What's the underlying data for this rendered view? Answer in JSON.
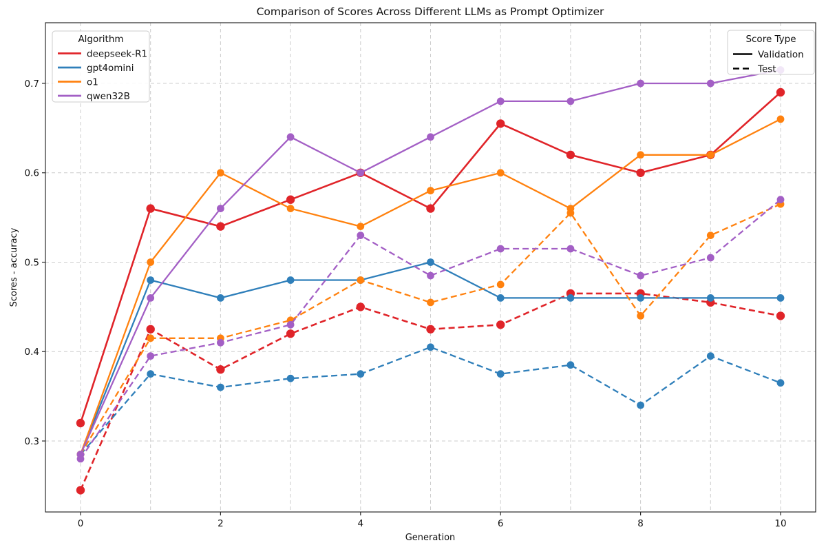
{
  "chart_data": {
    "type": "line",
    "title": "Comparison of Scores Across Different LLMs as Prompt Optimizer",
    "xlabel": "Generation",
    "ylabel": "Scores - accuracy",
    "x": [
      0,
      1,
      2,
      3,
      4,
      5,
      6,
      7,
      8,
      9,
      10
    ],
    "xticks": [
      0,
      2,
      4,
      6,
      8,
      10
    ],
    "xtick_labels": [
      "0",
      "2",
      "4",
      "6",
      "8",
      "10"
    ],
    "yticks": [
      0.3,
      0.4,
      0.5,
      0.6,
      0.7
    ],
    "ytick_labels": [
      "0.3",
      "0.4",
      "0.5",
      "0.6",
      "0.7"
    ],
    "xlim": [
      -0.5,
      10.5
    ],
    "ylim": [
      0.22,
      0.768
    ],
    "grid": true,
    "grid_color": "#cccccc",
    "background": "#ffffff",
    "spine_color": "#2a2a2a",
    "legend_algorithm": {
      "title": "Algorithm",
      "position": "upper-left"
    },
    "legend_score_type": {
      "title": "Score Type",
      "position": "upper-right",
      "entries": [
        {
          "label": "Validation",
          "style": "solid"
        },
        {
          "label": "Test",
          "style": "dashed"
        }
      ]
    },
    "algorithms": [
      {
        "label": "deepseek-R1",
        "color": "#e02429",
        "line_width": 2.6,
        "marker_radius": 6.2,
        "validation": [
          0.32,
          0.56,
          0.54,
          0.57,
          0.6,
          0.56,
          0.655,
          0.62,
          0.6,
          0.62,
          0.69
        ],
        "test": [
          0.245,
          0.425,
          0.38,
          0.42,
          0.45,
          0.425,
          0.43,
          0.465,
          0.465,
          0.455,
          0.44
        ]
      },
      {
        "label": "gpt4omini",
        "color": "#2f7fba",
        "line_width": 2.3,
        "marker_radius": 5.4,
        "validation": [
          0.285,
          0.48,
          0.46,
          0.48,
          0.48,
          0.5,
          0.46,
          0.46,
          0.46,
          0.46,
          0.46
        ],
        "test": [
          0.285,
          0.375,
          0.36,
          0.37,
          0.375,
          0.405,
          0.375,
          0.385,
          0.34,
          0.395,
          0.365
        ]
      },
      {
        "label": "o1",
        "color": "#ff810e",
        "line_width": 2.3,
        "marker_radius": 5.4,
        "validation": [
          0.285,
          0.5,
          0.6,
          0.56,
          0.54,
          0.58,
          0.6,
          0.56,
          0.62,
          0.62,
          0.66
        ],
        "test": [
          0.285,
          0.415,
          0.415,
          0.435,
          0.48,
          0.455,
          0.475,
          0.555,
          0.44,
          0.53,
          0.565
        ]
      },
      {
        "label": "qwen32B",
        "color": "#a35fc5",
        "line_width": 2.3,
        "marker_radius": 5.4,
        "validation": [
          0.285,
          0.46,
          0.56,
          0.64,
          0.6,
          0.64,
          0.68,
          0.68,
          0.7,
          0.7,
          0.715
        ],
        "test": [
          0.28,
          0.395,
          0.41,
          0.43,
          0.53,
          0.485,
          0.515,
          0.515,
          0.485,
          0.505,
          0.57
        ]
      }
    ]
  }
}
